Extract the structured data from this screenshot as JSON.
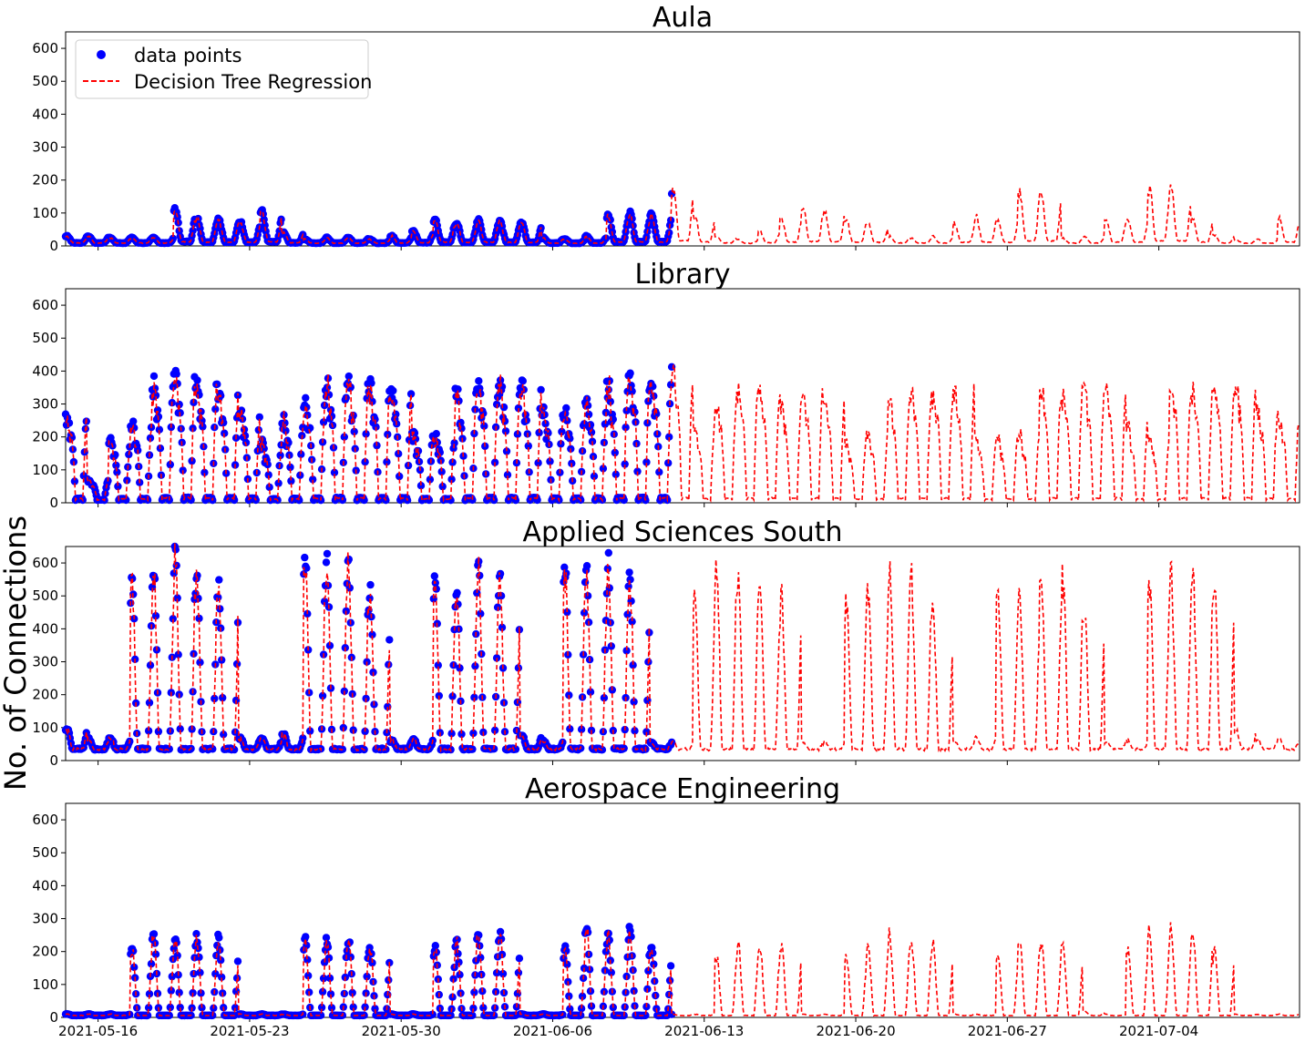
{
  "figure": {
    "ylabel": "No. of Connections",
    "x_tick_labels": [
      "2021-05-16",
      "2021-05-23",
      "2021-05-30",
      "2021-06-06",
      "2021-06-13",
      "2021-06-20",
      "2021-06-27",
      "2021-07-04"
    ],
    "y_tick_labels": [
      "0",
      "100",
      "200",
      "300",
      "400",
      "500",
      "600"
    ],
    "legend": {
      "data_label": "data points",
      "model_label": "Decision Tree Regression",
      "placement": "upper-left of first panel"
    },
    "colors": {
      "data_points": "#0000ff",
      "regression": "#ff0000"
    }
  },
  "chart_data": [
    {
      "type": "line",
      "title": "Aula",
      "xlabel": "",
      "ylabel": "",
      "x_range": [
        "2021-05-14T12:00",
        "2021-07-10T12:00"
      ],
      "ylim": [
        0,
        650
      ],
      "observed_until": "2021-06-11T12:00",
      "profile": "office",
      "series": [
        {
          "name": "data points",
          "kind": "scatter",
          "x_range": [
            "2021-05-14T12:00",
            "2021-06-11T12:00"
          ]
        },
        {
          "name": "Decision Tree Regression",
          "kind": "dashed-line",
          "x_range": [
            "2021-05-14T12:00",
            "2021-07-10T12:00"
          ]
        }
      ],
      "daily_peaks_observed": [
        30,
        30,
        25,
        25,
        25,
        110,
        85,
        85,
        75,
        110,
        40,
        20,
        25,
        25,
        20,
        30,
        45,
        80,
        70,
        80,
        75,
        70,
        25,
        20,
        30,
        95,
        100,
        100,
        180,
        95,
        30,
        20,
        45,
        90,
        120,
        110,
        80,
        70
      ],
      "daily_peaks_forecast": [
        30,
        25,
        30,
        70,
        90,
        80,
        170,
        165,
        25,
        30,
        85,
        85,
        185,
        175,
        85,
        35,
        20,
        20,
        85,
        80,
        80,
        95,
        90,
        25,
        30,
        80,
        85,
        95,
        85,
        65
      ]
    },
    {
      "type": "line",
      "title": "Library",
      "xlabel": "",
      "ylabel": "",
      "x_range": [
        "2021-05-14T12:00",
        "2021-07-10T12:00"
      ],
      "ylim": [
        0,
        650
      ],
      "observed_until": "2021-06-11T12:00",
      "profile": "study",
      "series": [
        {
          "name": "data points",
          "kind": "scatter",
          "x_range": [
            "2021-05-14T12:00",
            "2021-06-11T12:00"
          ]
        },
        {
          "name": "Decision Tree Regression",
          "kind": "dashed-line",
          "x_range": [
            "2021-05-14T12:00",
            "2021-07-10T12:00"
          ]
        }
      ],
      "daily_peaks_observed": [
        260,
        70,
        190,
        240,
        360,
        380,
        360,
        340,
        280,
        180,
        250,
        300,
        360,
        370,
        360,
        340,
        210,
        200,
        330,
        360,
        360,
        360,
        280,
        270,
        300,
        360,
        380,
        360,
        410
      ],
      "daily_peaks_forecast": [
        230,
        310,
        360,
        350,
        300,
        360,
        320,
        180,
        210,
        310,
        340,
        340,
        350,
        190,
        200,
        210,
        350,
        340,
        350,
        360,
        240,
        200,
        360,
        350,
        360,
        360,
        290
      ]
    },
    {
      "type": "line",
      "title": "Applied Sciences South",
      "xlabel": "",
      "ylabel": "",
      "x_range": [
        "2021-05-14T12:00",
        "2021-07-10T12:00"
      ],
      "ylim": [
        0,
        650
      ],
      "observed_until": "2021-06-11T12:00",
      "profile": "weekday",
      "series": [
        {
          "name": "data points",
          "kind": "scatter",
          "x_range": [
            "2021-05-14T12:00",
            "2021-06-11T12:00"
          ]
        },
        {
          "name": "Decision Tree Regression",
          "kind": "dashed-line",
          "x_range": [
            "2021-05-14T12:00",
            "2021-07-10T12:00"
          ]
        }
      ],
      "daily_peaks_observed": [
        95,
        65,
        70,
        545,
        580,
        630,
        570,
        530,
        70,
        65,
        80,
        610,
        620,
        580,
        510,
        60,
        65,
        550,
        530,
        600,
        550,
        80,
        60,
        590,
        580,
        600,
        550
      ],
      "daily_peaks_forecast": [
        55,
        55,
        540,
        610,
        570,
        560,
        500,
        60,
        60,
        510,
        510,
        570,
        570,
        490,
        60,
        80,
        510,
        510,
        570,
        570,
        460,
        60,
        60,
        580,
        590,
        590,
        560
      ]
    },
    {
      "type": "line",
      "title": "Aerospace Engineering",
      "xlabel": "",
      "ylabel": "",
      "x_range": [
        "2021-05-14T12:00",
        "2021-07-10T12:00"
      ],
      "ylim": [
        0,
        650
      ],
      "observed_until": "2021-06-11T12:00",
      "profile": "weekday",
      "series": [
        {
          "name": "data points",
          "kind": "scatter",
          "x_range": [
            "2021-05-14T12:00",
            "2021-06-11T12:00"
          ]
        },
        {
          "name": "Decision Tree Regression",
          "kind": "dashed-line",
          "x_range": [
            "2021-05-14T12:00",
            "2021-07-10T12:00"
          ]
        }
      ],
      "daily_peaks_observed": [
        10,
        10,
        10,
        220,
        250,
        240,
        240,
        240,
        10,
        10,
        10,
        240,
        240,
        240,
        210,
        10,
        10,
        210,
        230,
        250,
        250,
        10,
        10,
        210,
        270,
        250,
        270,
        210
      ],
      "daily_peaks_forecast": [
        10,
        10,
        200,
        230,
        230,
        230,
        10,
        10,
        190,
        220,
        250,
        240,
        230,
        10,
        10,
        190,
        250,
        230,
        230,
        20,
        10,
        220,
        260,
        270,
        260,
        210
      ]
    }
  ]
}
